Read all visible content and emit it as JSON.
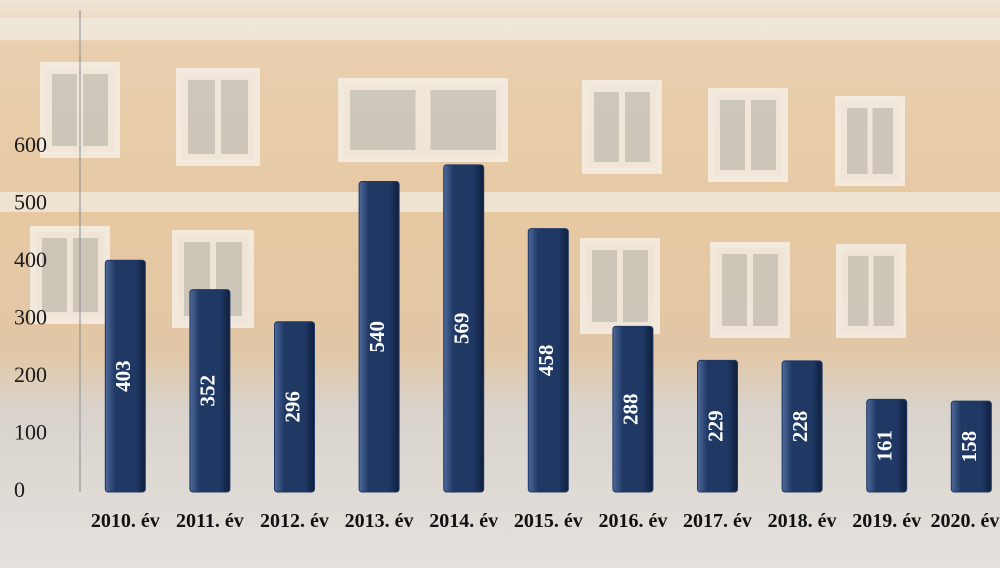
{
  "chart_data": {
    "type": "bar",
    "categories": [
      "2010. év",
      "2011. év",
      "2012. év",
      "2013. év",
      "2014. év",
      "2015. év",
      "2016. év",
      "2017. év",
      "2018. év",
      "2019. év",
      "2020. év"
    ],
    "values": [
      403,
      352,
      296,
      540,
      569,
      458,
      288,
      229,
      228,
      161,
      158
    ],
    "color": "#1f3864",
    "ylim": [
      0,
      600
    ],
    "yticks": [
      0,
      100,
      200,
      300,
      400,
      500,
      600
    ],
    "grid": false
  }
}
